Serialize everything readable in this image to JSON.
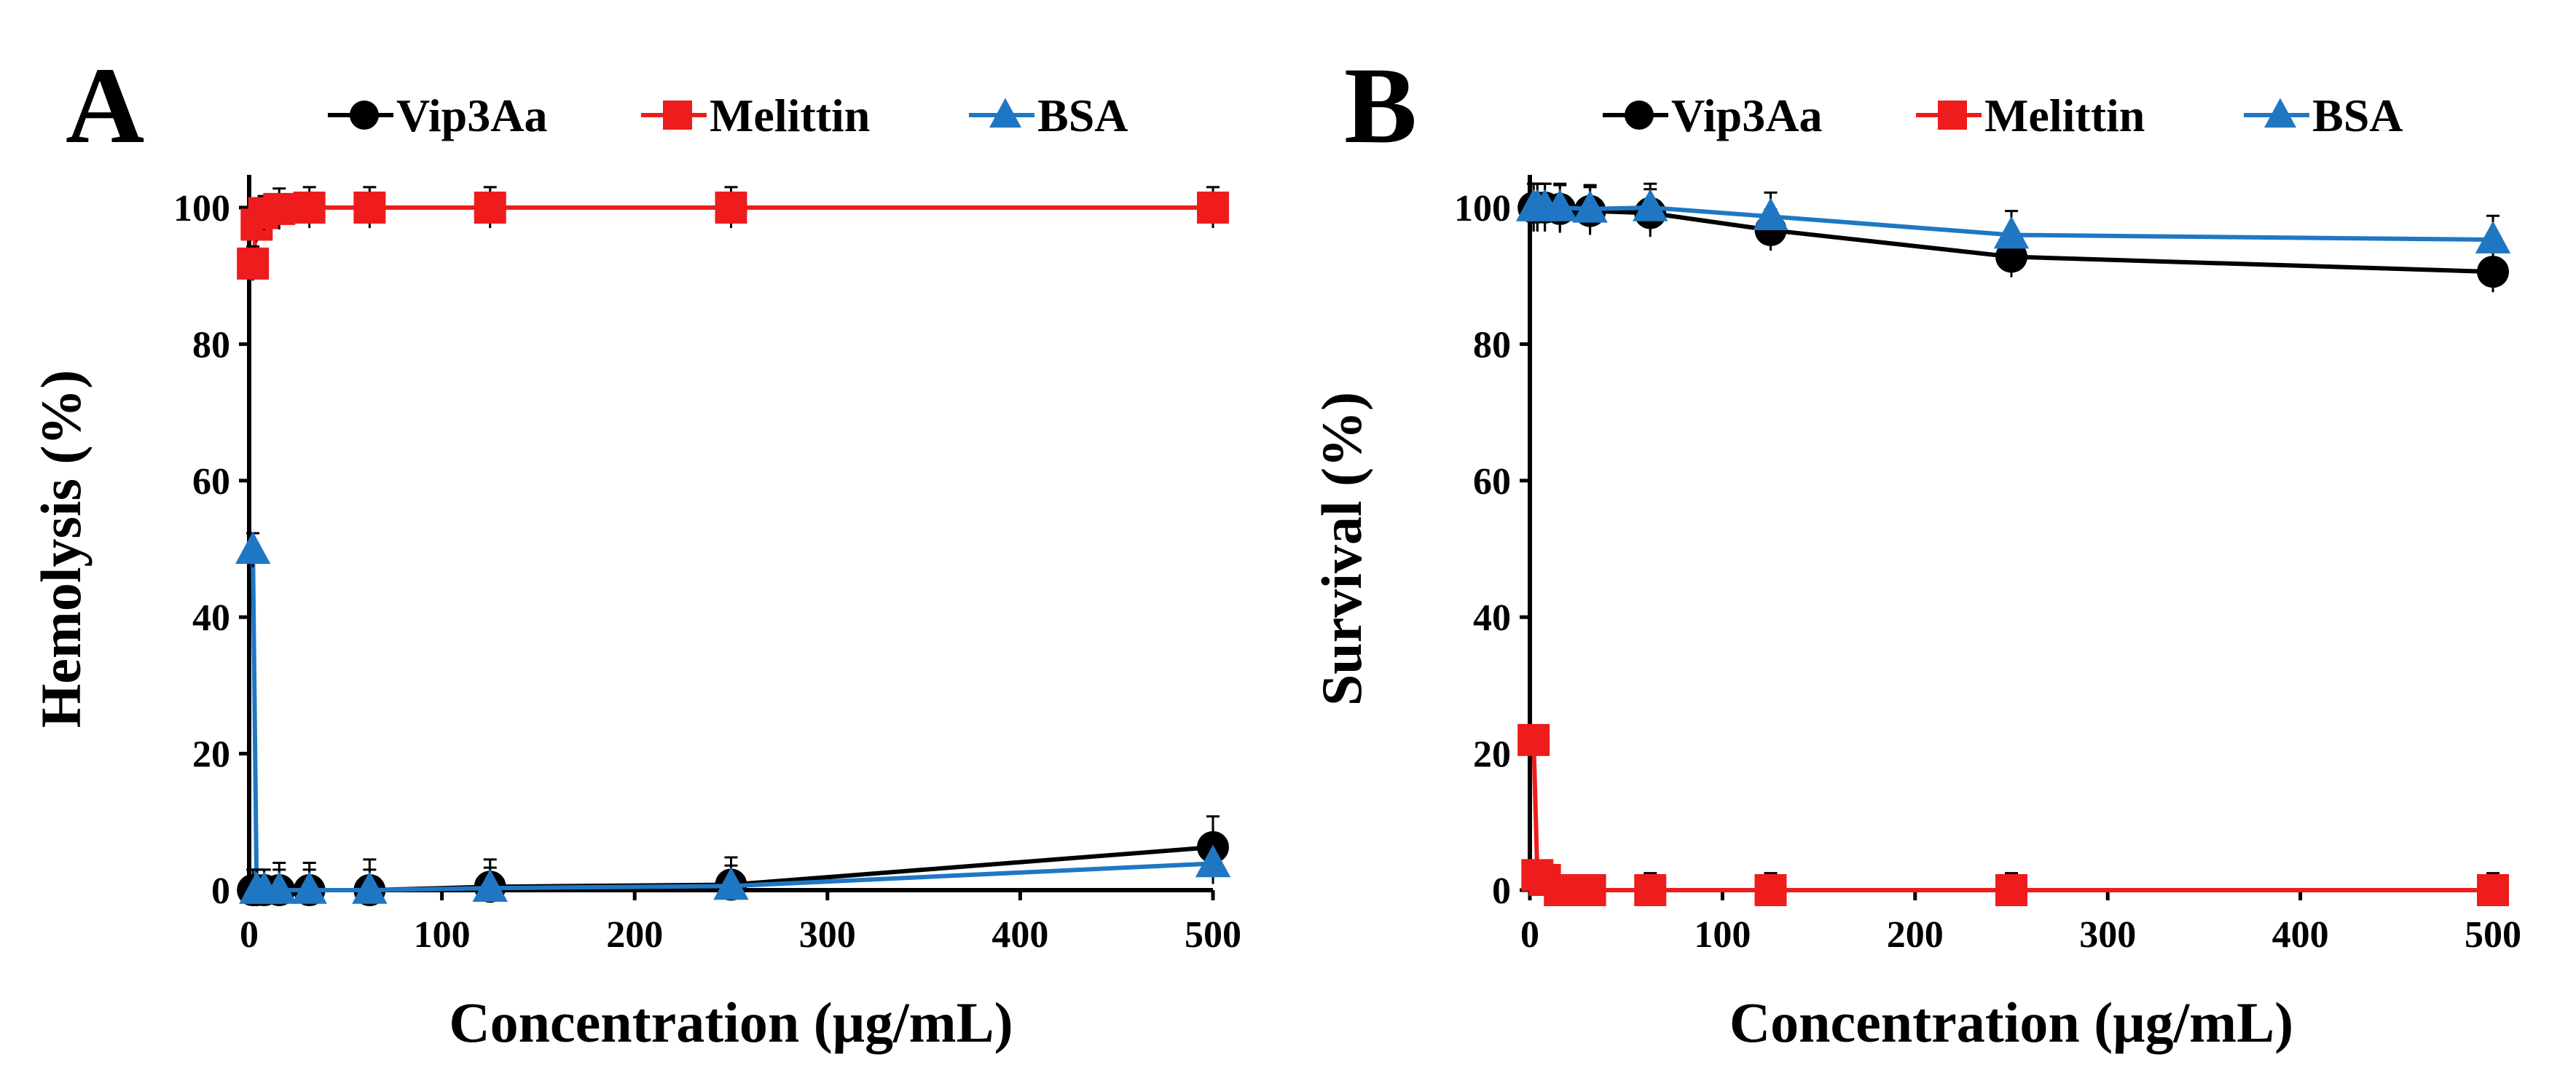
{
  "chart_data": [
    {
      "type": "line",
      "panel_label": "A",
      "title": "",
      "xlabel": "Concentration (μg/mL)",
      "ylabel": "Hemolysis (%)",
      "xlim": [
        0,
        500
      ],
      "ylim": [
        0,
        100
      ],
      "xticks": [
        0,
        100,
        200,
        300,
        400,
        500
      ],
      "yticks": [
        0,
        20,
        40,
        60,
        80,
        100
      ],
      "legend_position": "top",
      "series": [
        {
          "name": "Vip3Aa",
          "color": "#000000",
          "marker": "circle",
          "x": [
            1.95,
            3.9,
            7.8,
            15.6,
            31.25,
            62.5,
            125,
            250,
            500
          ],
          "y": [
            0,
            0,
            0,
            0,
            0,
            0,
            0.5,
            0.8,
            6.3
          ],
          "err": [
            3,
            3,
            3,
            4,
            4,
            4.5,
            4,
            4,
            4.5
          ]
        },
        {
          "name": "Melittin",
          "color": "#ee1c1c",
          "marker": "square",
          "x": [
            1.95,
            3.9,
            7.8,
            15.6,
            31.25,
            62.5,
            125,
            250,
            500
          ],
          "y": [
            91.8,
            97.5,
            99.2,
            99.8,
            100,
            100,
            100,
            100,
            100
          ],
          "err": [
            2.5,
            2.5,
            2.5,
            3,
            3,
            3,
            3,
            3,
            3
          ]
        },
        {
          "name": "BSA",
          "color": "#1f77c4",
          "marker": "triangle",
          "x": [
            1.95,
            3.9,
            7.8,
            15.6,
            31.25,
            62.5,
            125,
            250,
            500
          ],
          "y": [
            49.8,
            0,
            0,
            0,
            0,
            0,
            0.3,
            0.6,
            3.9
          ],
          "err": [
            2.5,
            3,
            3,
            3,
            3,
            3,
            3,
            3,
            3
          ]
        }
      ]
    },
    {
      "type": "line",
      "panel_label": "B",
      "title": "",
      "xlabel": "Concentration (μg/mL)",
      "ylabel": "Survival (%)",
      "xlim": [
        0,
        500
      ],
      "ylim": [
        0,
        100
      ],
      "xticks": [
        0,
        100,
        200,
        300,
        400,
        500
      ],
      "yticks": [
        0,
        20,
        40,
        60,
        80,
        100
      ],
      "legend_position": "top",
      "series": [
        {
          "name": "Vip3Aa",
          "color": "#000000",
          "marker": "circle",
          "x": [
            1.95,
            3.9,
            7.8,
            15.6,
            31.25,
            62.5,
            125,
            250,
            500
          ],
          "y": [
            100,
            100,
            100,
            99.8,
            99.5,
            99.2,
            96.7,
            92.8,
            90.6
          ],
          "err": [
            3.5,
            3.5,
            3.5,
            3.5,
            3.5,
            3.5,
            3,
            3,
            3
          ]
        },
        {
          "name": "Melittin",
          "color": "#ee1c1c",
          "marker": "square",
          "x": [
            1.95,
            3.9,
            7.8,
            15.6,
            31.25,
            62.5,
            125,
            250,
            500
          ],
          "y": [
            22,
            2.2,
            1.5,
            0,
            0,
            0,
            0,
            0,
            0
          ],
          "err": [
            2,
            2,
            2,
            2,
            2,
            2.5,
            2.5,
            2.5,
            2.5
          ]
        },
        {
          "name": "BSA",
          "color": "#1f77c4",
          "marker": "triangle",
          "x": [
            1.95,
            3.9,
            7.8,
            15.6,
            31.25,
            62.5,
            125,
            250,
            500
          ],
          "y": [
            100,
            100,
            100,
            100,
            99.8,
            100,
            98.7,
            96,
            95.3
          ],
          "err": [
            3.5,
            3.5,
            3.5,
            3.5,
            3.5,
            3.5,
            3.5,
            3.5,
            3.5
          ]
        }
      ]
    }
  ]
}
